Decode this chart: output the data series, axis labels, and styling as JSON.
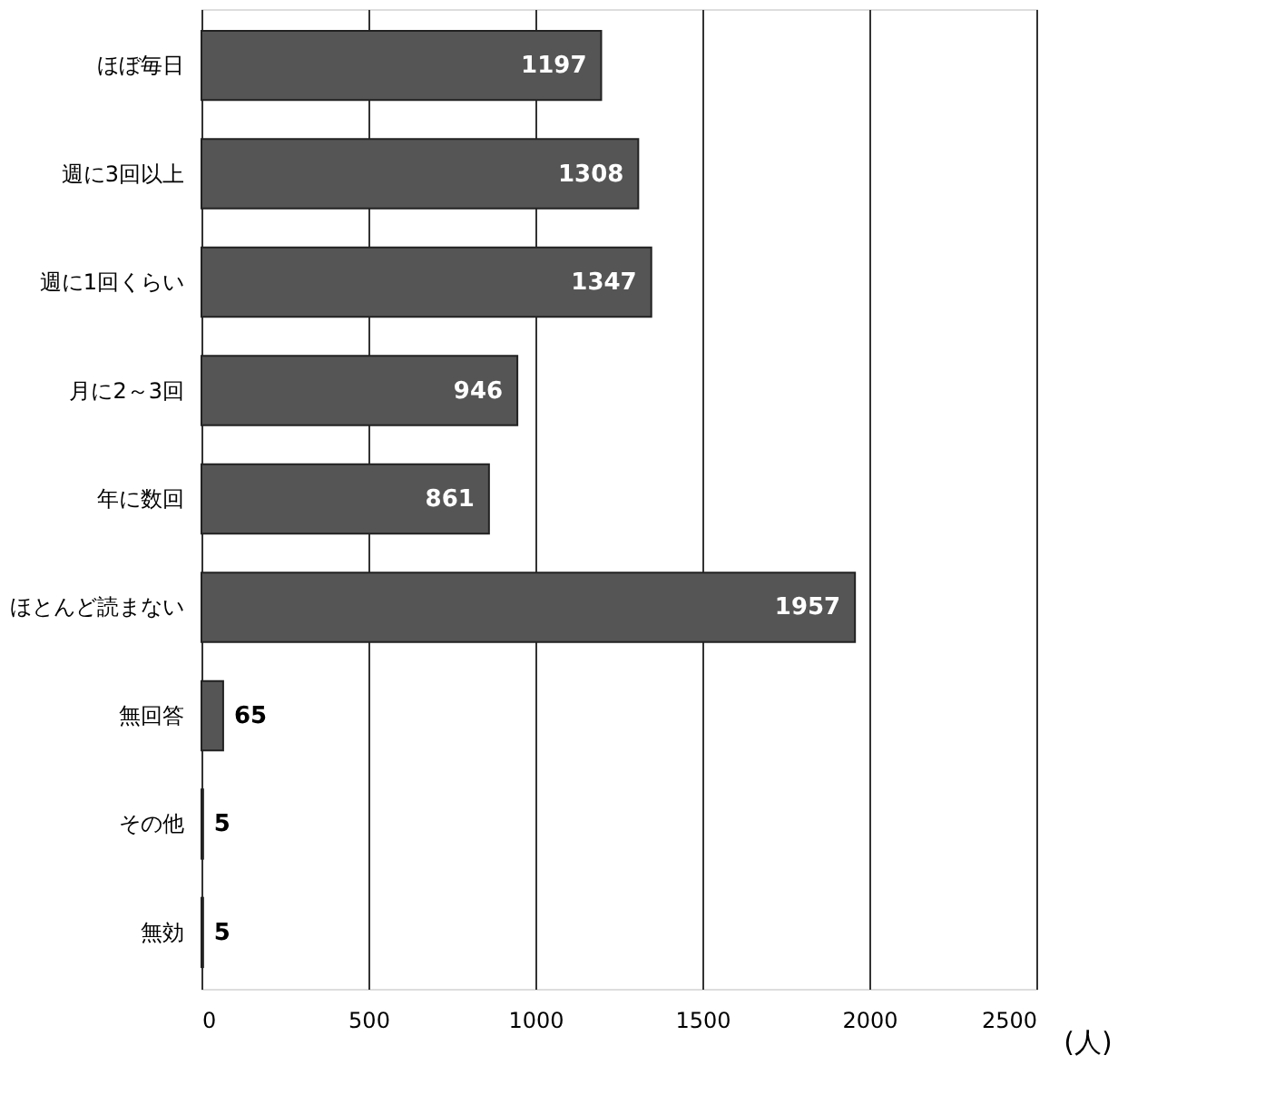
{
  "chart_data": {
    "type": "bar",
    "orientation": "horizontal",
    "categories": [
      "ほぼ毎日",
      "週に3回以上",
      "週に1回くらい",
      "月に2～3回",
      "年に数回",
      "ほとんど読まない",
      "無回答",
      "その他",
      "無効"
    ],
    "values": [
      1197,
      1308,
      1347,
      946,
      861,
      1957,
      65,
      5,
      5
    ],
    "color": "#555555",
    "xlabel": "(人)",
    "xlim": [
      0,
      2500
    ],
    "xticks": [
      0,
      500,
      1000,
      1500,
      2000,
      2500
    ],
    "grid": "x",
    "data_labels": true
  }
}
